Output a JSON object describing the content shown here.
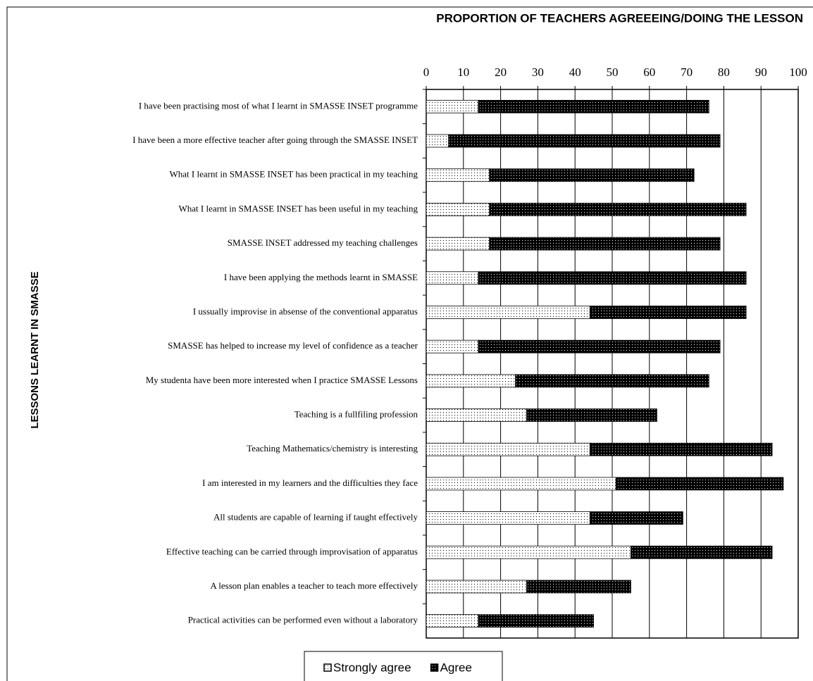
{
  "chart_data": {
    "type": "bar",
    "orientation": "horizontal",
    "stacked": true,
    "title": "PROPORTION OF TEACHERS AGREEEING/DOING THE LESSON",
    "y_label": "LESSONS LEARNT IN SMASSE",
    "categories": [
      "I have been practising most of what I learnt in SMASSE INSET programme",
      "I have been a more effective teacher after going through the SMASSE INSET",
      "What I learnt in SMASSE INSET has been practical in my teaching",
      "What I learnt in SMASSE INSET has been useful in my teaching",
      "SMASSE INSET addressed my teaching challenges",
      "I have been applying the methods learnt in SMASSE",
      "I ussually improvise in absense of the conventional apparatus",
      "SMASSE has helped to increase my level of confidence as a teacher",
      "My studenta have been more interested when I practice SMASSE Lessons",
      "Teaching is a fullfiling profession",
      "Teaching Mathematics/chemistry is interesting",
      "I am interested in my learners and the difficulties they face",
      "All students are capable of learning if taught effectively",
      "Effective teaching can be carried through improvisation of apparatus",
      "A lesson plan enables a teacher to teach more effectively",
      "Practical activities can be performed even without a laboratory"
    ],
    "series": [
      {
        "name": "Strongly agree",
        "color": "#ffffff",
        "values": [
          14,
          6,
          17,
          17,
          17,
          14,
          44,
          14,
          24,
          27,
          44,
          51,
          44,
          55,
          27,
          14
        ]
      },
      {
        "name": "Agree",
        "color": "#000000",
        "values": [
          62,
          73,
          55,
          69,
          62,
          72,
          42,
          65,
          52,
          35,
          49,
          45,
          25,
          38,
          28,
          31
        ]
      }
    ],
    "xlim": [
      0,
      100
    ],
    "xticks": [
      0,
      10,
      20,
      30,
      40,
      50,
      60,
      70,
      80,
      90,
      100
    ],
    "grid": true,
    "legend": "bottom"
  }
}
